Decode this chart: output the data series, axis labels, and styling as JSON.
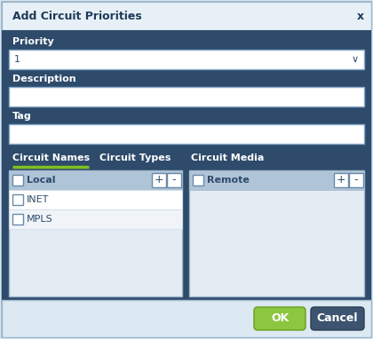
{
  "title": "Add Circuit Priorities",
  "bg_outer": "#dce8f2",
  "bg_header": "#e8f0f7",
  "bg_main": "#2e4b6b",
  "bg_panel": "#e4ecf3",
  "bg_white": "#ffffff",
  "bg_row_header": "#b0c4d8",
  "bg_row_white": "#ffffff",
  "bg_row_light": "#f0f4f8",
  "fg_white": "#ffffff",
  "fg_dark": "#1e3a58",
  "fg_text": "#2e4b6b",
  "btn_ok_bg": "#8dc640",
  "btn_cancel_bg": "#3d5470",
  "btn_ok_text": "#ffffff",
  "btn_cancel_text": "#ffffff",
  "tab_underline": "#80c020",
  "border_color": "#a0b8cc",
  "priority_label": "Priority",
  "priority_value": "1",
  "description_label": "Description",
  "tag_label": "Tag",
  "tab_names": [
    "Circuit Names",
    "Circuit Types",
    "Circuit Media"
  ],
  "active_tab": 0,
  "local_header": "Local",
  "remote_header": "Remote",
  "local_items": [
    "INET",
    "MPLS"
  ],
  "ok_label": "OK",
  "cancel_label": "Cancel",
  "close_symbol": "x",
  "plus_symbol": "+",
  "minus_symbol": "-"
}
